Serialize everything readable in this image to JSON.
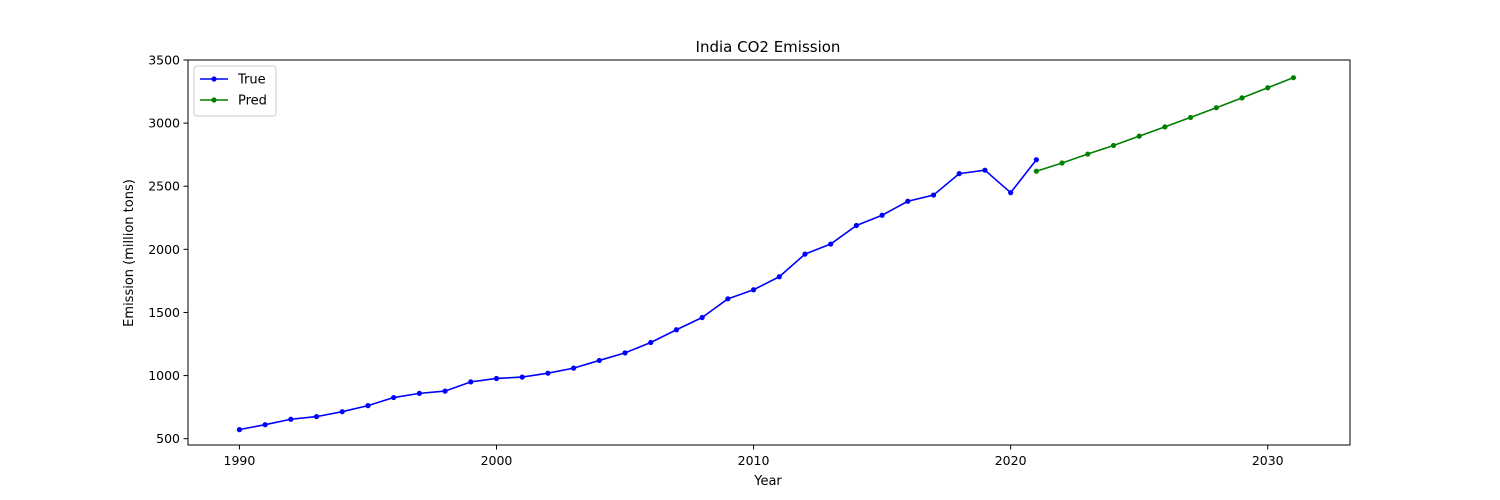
{
  "chart_data": {
    "type": "line",
    "title": "India CO2 Emission",
    "xlabel": "Year",
    "ylabel": "Emission (million tons)",
    "xlim": [
      1988,
      2033.2
    ],
    "ylim": [
      450,
      3500
    ],
    "xticks": [
      1990,
      2000,
      2010,
      2020,
      2030
    ],
    "yticks": [
      500,
      1000,
      1500,
      2000,
      2500,
      3000,
      3500
    ],
    "grid": false,
    "legend_position": "top-left",
    "series": [
      {
        "name": "True",
        "color": "#0000ff",
        "x": [
          1990,
          1991,
          1992,
          1993,
          1994,
          1995,
          1996,
          1997,
          1998,
          1999,
          2000,
          2001,
          2002,
          2003,
          2004,
          2005,
          2006,
          2007,
          2008,
          2009,
          2010,
          2011,
          2012,
          2013,
          2014,
          2015,
          2016,
          2017,
          2018,
          2019,
          2020,
          2021
        ],
        "y": [
          572,
          611,
          654,
          675,
          714,
          762,
          826,
          859,
          877,
          950,
          977,
          988,
          1019,
          1059,
          1120,
          1180,
          1262,
          1363,
          1460,
          1608,
          1680,
          1783,
          1962,
          2042,
          2189,
          2270,
          2381,
          2430,
          2600,
          2627,
          2449,
          2710
        ]
      },
      {
        "name": "Pred",
        "color": "#008000",
        "x": [
          2021,
          2022,
          2023,
          2024,
          2025,
          2026,
          2027,
          2028,
          2029,
          2030,
          2031
        ],
        "y": [
          2619,
          2684,
          2755,
          2823,
          2897,
          2970,
          3045,
          3122,
          3200,
          3280,
          3360
        ]
      }
    ]
  }
}
